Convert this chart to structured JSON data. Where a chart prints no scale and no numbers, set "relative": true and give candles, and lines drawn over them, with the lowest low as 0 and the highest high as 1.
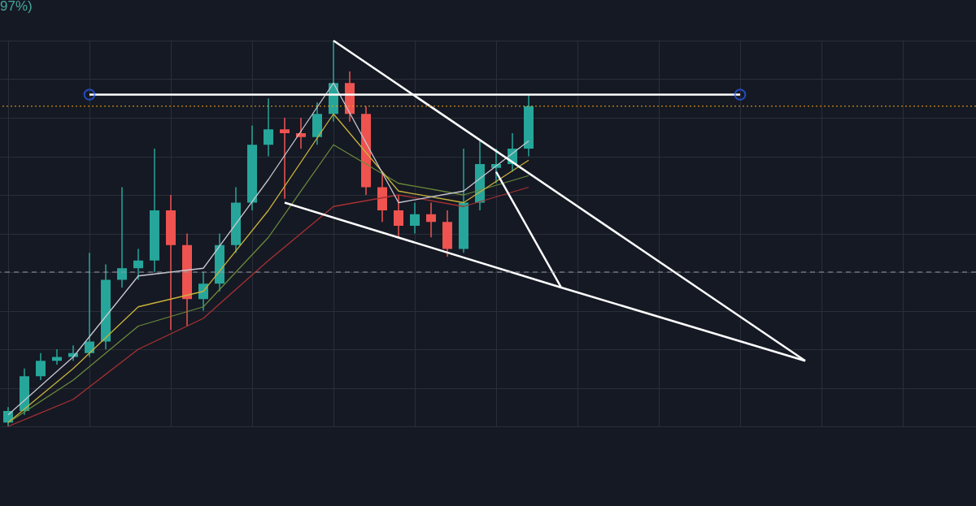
{
  "chart_data": {
    "type": "candlestick",
    "relative": true,
    "annotations": [
      "97%)"
    ],
    "categories": [
      null,
      null,
      null,
      null,
      null,
      null,
      null,
      null,
      null,
      null,
      null,
      null,
      null,
      null,
      null,
      null,
      null,
      null,
      null,
      null,
      null,
      null,
      null,
      null,
      null,
      null,
      null,
      null,
      null,
      null,
      null,
      null,
      null,
      null,
      null,
      null,
      null,
      null,
      null,
      null,
      null,
      null,
      null,
      null,
      null,
      null,
      null,
      null,
      null,
      null,
      null,
      null,
      null,
      null,
      null,
      null,
      null,
      null,
      null,
      null
    ],
    "ohlc": [
      [
        0.01,
        0.05,
        0.0,
        0.04
      ],
      [
        0.04,
        0.15,
        0.03,
        0.13
      ],
      [
        0.13,
        0.19,
        0.12,
        0.17
      ],
      [
        0.17,
        0.2,
        0.16,
        0.18
      ],
      [
        0.18,
        0.21,
        0.17,
        0.19
      ],
      [
        0.19,
        0.45,
        0.18,
        0.22
      ],
      [
        0.22,
        0.42,
        0.2,
        0.38
      ],
      [
        0.38,
        0.62,
        0.36,
        0.41
      ],
      [
        0.41,
        0.46,
        0.38,
        0.43
      ],
      [
        0.43,
        0.72,
        0.4,
        0.56
      ],
      [
        0.56,
        0.6,
        0.25,
        0.47
      ],
      [
        0.47,
        0.5,
        0.26,
        0.33
      ],
      [
        0.33,
        0.4,
        0.3,
        0.37
      ],
      [
        0.37,
        0.5,
        0.35,
        0.47
      ],
      [
        0.47,
        0.62,
        0.45,
        0.58
      ],
      [
        0.58,
        0.78,
        0.56,
        0.73
      ],
      [
        0.73,
        0.85,
        0.7,
        0.77
      ],
      [
        0.77,
        0.8,
        0.59,
        0.76
      ],
      [
        0.76,
        0.8,
        0.72,
        0.75
      ],
      [
        0.75,
        0.84,
        0.73,
        0.81
      ],
      [
        0.81,
        1.0,
        0.79,
        0.89
      ],
      [
        0.89,
        0.92,
        0.79,
        0.81
      ],
      [
        0.81,
        0.83,
        0.6,
        0.62
      ],
      [
        0.62,
        0.66,
        0.53,
        0.56
      ],
      [
        0.56,
        0.6,
        0.49,
        0.52
      ],
      [
        0.52,
        0.58,
        0.5,
        0.55
      ],
      [
        0.55,
        0.58,
        0.49,
        0.53
      ],
      [
        0.53,
        0.56,
        0.44,
        0.46
      ],
      [
        0.46,
        0.72,
        0.45,
        0.58
      ],
      [
        0.58,
        0.74,
        0.56,
        0.68
      ],
      [
        0.67,
        0.72,
        0.63,
        0.68
      ],
      [
        0.68,
        0.76,
        0.66,
        0.72
      ],
      [
        0.72,
        0.86,
        0.7,
        0.83
      ],
      null,
      null,
      null,
      null,
      null,
      null,
      null,
      null,
      null,
      null,
      null,
      null,
      null,
      null,
      null,
      null,
      null,
      null,
      null,
      null,
      null,
      null,
      null,
      null,
      null,
      null,
      null
    ],
    "colors": [
      "#26a69a",
      "#26a69a",
      "#26a69a",
      "#26a69a",
      "#26a69a",
      "#26a69a",
      "#26a69a",
      "#26a69a",
      "#26a69a",
      "#26a69a",
      "#ef5350",
      "#ef5350",
      "#26a69a",
      "#26a69a",
      "#26a69a",
      "#26a69a",
      "#26a69a",
      "#ef5350",
      "#ef5350",
      "#26a69a",
      "#26a69a",
      "#ef5350",
      "#ef5350",
      "#ef5350",
      "#ef5350",
      "#26a69a",
      "#ef5350",
      "#ef5350",
      "#26a69a",
      "#26a69a",
      "#26a69a",
      "#26a69a",
      "#26a69a",
      null,
      null,
      null,
      null,
      null,
      null,
      null,
      null,
      null,
      null,
      null,
      null,
      null,
      null,
      null,
      null,
      null,
      null,
      null,
      null,
      null,
      null,
      null,
      null,
      null,
      null,
      null
    ],
    "series": [
      {
        "type": "line",
        "color": "#a83232",
        "values": [
          0.0,
          null,
          null,
          null,
          0.07,
          null,
          null,
          null,
          0.2,
          null,
          null,
          null,
          0.28,
          null,
          null,
          null,
          0.43,
          null,
          null,
          null,
          0.57,
          null,
          null,
          null,
          0.6,
          null,
          null,
          null,
          0.57,
          null,
          null,
          null,
          0.62,
          null,
          null,
          null,
          null,
          null,
          null,
          null,
          null,
          null,
          null,
          null,
          null,
          null,
          null,
          null,
          null,
          null,
          null,
          null,
          null,
          null,
          null,
          null,
          null,
          null,
          null,
          null
        ]
      },
      {
        "type": "line",
        "color": "#6b8a3a",
        "values": [
          0.01,
          null,
          null,
          null,
          0.12,
          null,
          null,
          null,
          0.26,
          null,
          null,
          null,
          0.31,
          null,
          null,
          null,
          0.49,
          null,
          null,
          null,
          0.73,
          null,
          null,
          null,
          0.63,
          null,
          null,
          null,
          0.6,
          null,
          null,
          null,
          0.65,
          null,
          null,
          null,
          null,
          null,
          null,
          null,
          null,
          null,
          null,
          null,
          null,
          null,
          null,
          null,
          null,
          null,
          null,
          null,
          null,
          null,
          null,
          null,
          null,
          null,
          null,
          null
        ]
      },
      {
        "type": "line",
        "color": "#c9b23a",
        "values": [
          0.01,
          null,
          null,
          null,
          0.15,
          null,
          null,
          null,
          0.31,
          null,
          null,
          null,
          0.35,
          null,
          null,
          null,
          0.56,
          null,
          null,
          null,
          0.81,
          null,
          null,
          null,
          0.61,
          null,
          null,
          null,
          0.58,
          null,
          null,
          null,
          0.69,
          null,
          null,
          null,
          null,
          null,
          null,
          null,
          null,
          null,
          null,
          null,
          null,
          null,
          null,
          null,
          null,
          null,
          null,
          null,
          null,
          null,
          null,
          null,
          null,
          null,
          null,
          null
        ]
      },
      {
        "type": "line",
        "color": "#c9c9d1",
        "values": [
          0.03,
          null,
          null,
          null,
          0.18,
          null,
          null,
          null,
          0.39,
          null,
          null,
          null,
          0.41,
          null,
          null,
          null,
          0.64,
          null,
          null,
          null,
          0.89,
          null,
          null,
          null,
          0.58,
          null,
          null,
          null,
          0.61,
          null,
          null,
          null,
          0.74,
          null,
          null,
          null,
          null,
          null,
          null,
          null,
          null,
          null,
          null,
          null,
          null,
          null,
          null,
          null,
          null,
          null,
          null,
          null,
          null,
          null,
          null,
          null,
          null,
          null,
          null,
          null
        ]
      },
      {
        "type": "line",
        "color": "#ffffff",
        "marker": "circle",
        "values": [
          null,
          null,
          null,
          null,
          null,
          0.86,
          null,
          null,
          null,
          null,
          null,
          null,
          null,
          null,
          null,
          null,
          null,
          null,
          null,
          null,
          null,
          null,
          null,
          null,
          null,
          null,
          null,
          null,
          null,
          null,
          null,
          null,
          null,
          null,
          null,
          null,
          null,
          null,
          null,
          null,
          null,
          null,
          null,
          null,
          null,
          0.86,
          null,
          null,
          null,
          null,
          null,
          null,
          null,
          null,
          null,
          null,
          null,
          null,
          null,
          null
        ]
      },
      {
        "type": "line",
        "color": "#ffffff",
        "values": [
          null,
          null,
          null,
          null,
          null,
          null,
          null,
          null,
          null,
          null,
          null,
          null,
          null,
          null,
          null,
          null,
          null,
          null,
          null,
          null,
          1.0,
          null,
          null,
          null,
          null,
          null,
          null,
          null,
          null,
          null,
          null,
          null,
          null,
          null,
          null,
          null,
          null,
          null,
          null,
          null,
          null,
          null,
          null,
          null,
          null,
          null,
          null,
          null,
          null,
          0.17,
          null,
          null,
          null,
          null,
          null,
          null,
          null,
          null,
          null,
          null
        ]
      },
      {
        "type": "line",
        "color": "#ffffff",
        "values": [
          null,
          null,
          null,
          null,
          null,
          null,
          null,
          null,
          null,
          null,
          null,
          null,
          null,
          null,
          null,
          null,
          null,
          0.58,
          null,
          null,
          null,
          null,
          null,
          null,
          null,
          null,
          null,
          null,
          null,
          null,
          null,
          null,
          null,
          null,
          0.36,
          null,
          null,
          null,
          null,
          null,
          null,
          null,
          null,
          null,
          null,
          null,
          null,
          null,
          null,
          0.17,
          null,
          null,
          null,
          null,
          null,
          null,
          null,
          null,
          null,
          null
        ]
      },
      {
        "type": "line",
        "color": "#ffffff",
        "values": [
          null,
          null,
          null,
          null,
          null,
          null,
          null,
          null,
          null,
          null,
          null,
          null,
          null,
          null,
          null,
          null,
          null,
          null,
          null,
          null,
          null,
          null,
          null,
          null,
          null,
          null,
          null,
          null,
          null,
          null,
          0.66,
          null,
          null,
          null,
          0.36,
          null,
          null,
          null,
          null,
          null,
          null,
          null,
          null,
          null,
          null,
          null,
          null,
          null,
          null,
          null,
          null,
          null,
          null,
          null,
          null,
          null,
          null,
          null,
          null,
          null
        ]
      }
    ],
    "ref_lines": [
      {
        "axis": "y",
        "value": 0.83,
        "color": "#f7a600",
        "line_style": "dotted"
      },
      {
        "axis": "y",
        "value": 0.4,
        "color": "#9598a1",
        "line_style": "dashed"
      }
    ],
    "grid": true
  }
}
